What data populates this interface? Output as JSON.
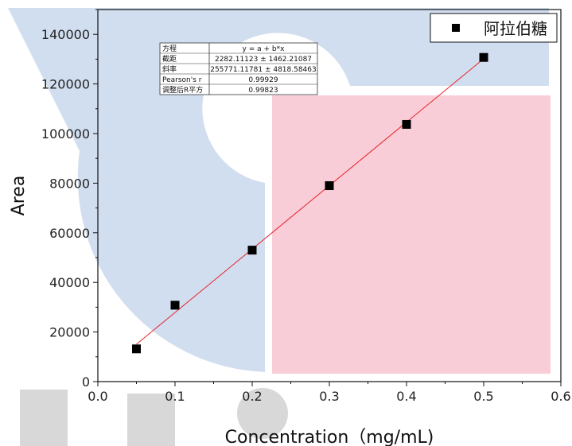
{
  "chart_data": {
    "type": "scatter",
    "title": "",
    "xlabel": "Concentration（mg/mL)",
    "ylabel": "Area",
    "xlim": [
      0.0,
      0.6
    ],
    "ylim": [
      0,
      150000
    ],
    "x_ticks": [
      "0.0",
      "0.1",
      "0.2",
      "0.3",
      "0.4",
      "0.5",
      "0.6"
    ],
    "y_ticks": [
      "0",
      "20000",
      "40000",
      "60000",
      "80000",
      "100000",
      "120000",
      "140000"
    ],
    "grid": false,
    "legend_position": "top-right",
    "series": [
      {
        "name": "阿拉伯糖",
        "marker": "square",
        "color": "#000000",
        "x": [
          0.05,
          0.1,
          0.2,
          0.3,
          0.4,
          0.5
        ],
        "y": [
          13200,
          30800,
          53000,
          79000,
          103700,
          130700
        ]
      }
    ],
    "fit_line": {
      "color": "#e8232a",
      "x": [
        0.05,
        0.5
      ],
      "y": [
        15070.7,
        130167.7
      ]
    },
    "stats_table": {
      "rows": [
        [
          "方程",
          "y = a + b*x"
        ],
        [
          "截距",
          "2282.11123 ± 1462.21087"
        ],
        [
          "斜率",
          "255771.11781 ± 4818.58463"
        ],
        [
          "Pearson's r",
          "0.99929"
        ],
        [
          "调整后R平方",
          "0.99823"
        ]
      ]
    }
  }
}
